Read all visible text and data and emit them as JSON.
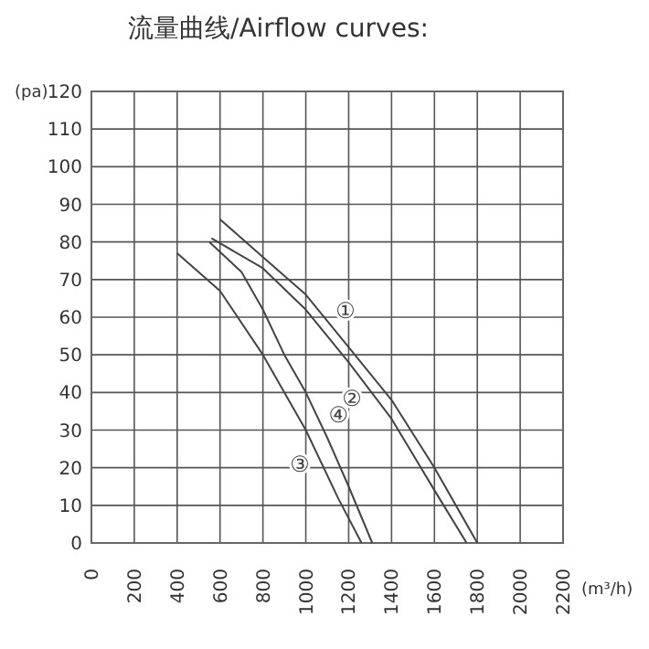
{
  "chart_data": {
    "type": "line",
    "title": "流量曲线/Airflow curves:",
    "xlabel": "(m³/h)",
    "ylabel": "(pa)",
    "xlim": [
      0,
      2200
    ],
    "xticks": [
      0,
      200,
      400,
      600,
      800,
      1000,
      1200,
      1400,
      1600,
      1800,
      2000,
      2200
    ],
    "ylim": [
      0,
      120
    ],
    "yticks": [
      0,
      10,
      20,
      30,
      40,
      50,
      60,
      70,
      80,
      90,
      100,
      110,
      120
    ],
    "grid": true,
    "series": [
      {
        "name": "①",
        "color": "#444444",
        "x": [
          600,
          800,
          1000,
          1200,
          1400,
          1600,
          1800
        ],
        "values": [
          86,
          76,
          66,
          52,
          38,
          20,
          0
        ]
      },
      {
        "name": "②",
        "color": "#444444",
        "x": [
          560,
          800,
          1000,
          1200,
          1400,
          1600,
          1750
        ],
        "values": [
          81,
          73,
          62,
          48,
          33,
          14,
          0
        ]
      },
      {
        "name": "③",
        "color": "#444444",
        "x": [
          400,
          600,
          800,
          1000,
          1150,
          1260
        ],
        "values": [
          77,
          67,
          50,
          30,
          12,
          0
        ]
      },
      {
        "name": "④",
        "color": "#444444",
        "x": [
          550,
          700,
          800,
          900,
          1000,
          1100,
          1200,
          1310
        ],
        "values": [
          80,
          72,
          62,
          50,
          40,
          28,
          15,
          0
        ]
      }
    ]
  }
}
